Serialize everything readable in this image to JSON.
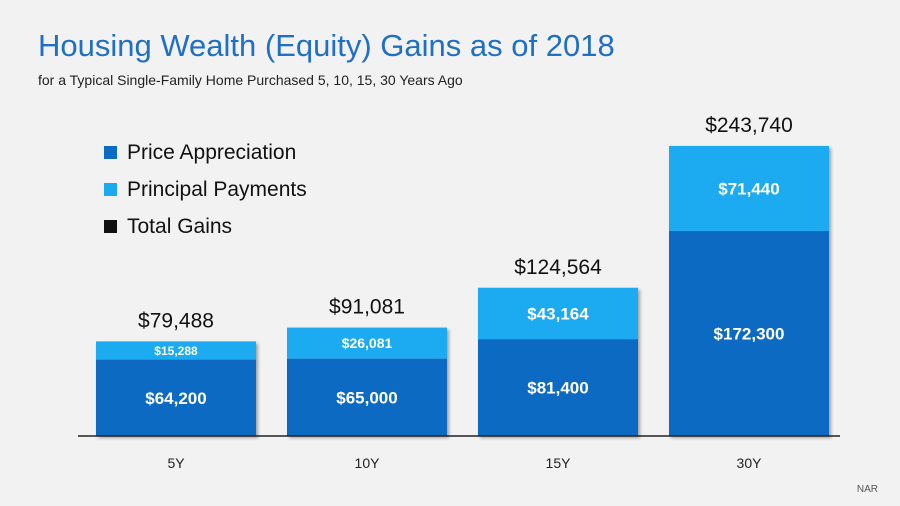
{
  "header": {
    "title": "Housing Wealth (Equity) Gains as of 2018",
    "subtitle": "for a Typical Single-Family Home Purchased 5, 10, 15, 30 Years Ago"
  },
  "source": "NAR",
  "colors": {
    "price_appreciation": "#0a6bc2",
    "principal_payments": "#1baaf0",
    "total_gains": "#111111",
    "title": "#1f6fc5"
  },
  "chart_data": {
    "type": "bar",
    "stacked": true,
    "categories": [
      "5Y",
      "10Y",
      "15Y",
      "30Y"
    ],
    "series": [
      {
        "name": "Price Appreciation",
        "values": [
          64200,
          65000,
          81400,
          172300
        ],
        "labels": [
          "$64,200",
          "$65,000",
          "$81,400",
          "$172,300"
        ]
      },
      {
        "name": "Principal Payments",
        "values": [
          15288,
          26081,
          43164,
          71440
        ],
        "labels": [
          "$15,288",
          "$26,081",
          "$43,164",
          "$71,440"
        ]
      }
    ],
    "totals": {
      "name": "Total Gains",
      "values": [
        79488,
        91081,
        124564,
        243740
      ],
      "labels": [
        "$79,488",
        "$91,081",
        "$124,564",
        "$243,740"
      ]
    },
    "ylim": [
      0,
      250000
    ],
    "grid": false,
    "legend_position": "top-left"
  }
}
